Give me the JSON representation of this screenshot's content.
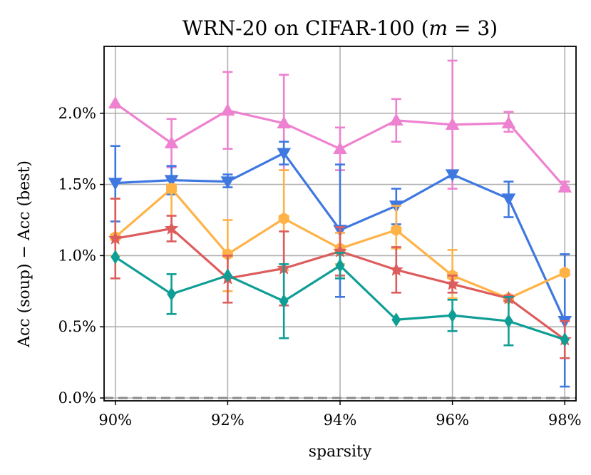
{
  "chart_data": {
    "type": "line",
    "title": "WRN-20 on CIFAR-100 (m = 3)",
    "title_parts": {
      "prefix": "WRN-20 on CIFAR-100 (",
      "var": "m",
      "rest": " = 3)"
    },
    "xlabel": "sparsity",
    "ylabel": "Acc (soup) − Acc (best)",
    "x": [
      90,
      91,
      92,
      93,
      94,
      95,
      96,
      97,
      98
    ],
    "x_ticks": [
      90,
      92,
      94,
      96,
      98
    ],
    "x_tick_labels": [
      "90%",
      "92%",
      "94%",
      "96%",
      "98%"
    ],
    "y_ticks": [
      0.0,
      0.5,
      1.0,
      1.5,
      2.0
    ],
    "y_tick_labels": [
      "0.0%",
      "0.5%",
      "1.0%",
      "1.5%",
      "2.0%"
    ],
    "xlim": [
      89.8,
      98.2
    ],
    "ylim": [
      -0.02,
      2.47
    ],
    "grid": true,
    "zero_line": 0.0,
    "series": [
      {
        "name": "pink",
        "color": "#ee82d0",
        "marker": "triangle-up",
        "values": [
          2.07,
          1.79,
          2.02,
          1.93,
          1.75,
          1.95,
          1.92,
          1.93,
          1.48
        ],
        "err_low": [
          2.07,
          1.62,
          1.75,
          1.6,
          1.6,
          1.8,
          1.47,
          1.87,
          1.48
        ],
        "err_high": [
          2.07,
          1.96,
          2.29,
          2.27,
          1.9,
          2.1,
          2.37,
          2.01,
          1.52
        ]
      },
      {
        "name": "blue",
        "color": "#3f78e0",
        "marker": "triangle-down",
        "values": [
          1.51,
          1.53,
          1.52,
          1.72,
          1.18,
          1.35,
          1.57,
          1.4,
          0.54
        ],
        "err_low": [
          1.24,
          1.43,
          1.48,
          1.64,
          0.71,
          1.22,
          1.55,
          1.27,
          0.08
        ],
        "err_high": [
          1.77,
          1.63,
          1.57,
          1.8,
          1.64,
          1.47,
          1.59,
          1.52,
          1.01
        ]
      },
      {
        "name": "orange",
        "color": "#ffb347",
        "marker": "hexagon",
        "values": [
          1.13,
          1.47,
          1.01,
          1.26,
          1.05,
          1.18,
          0.86,
          0.7,
          0.88
        ],
        "err_low": [
          1.0,
          1.2,
          0.75,
          0.9,
          0.94,
          1.05,
          0.7,
          0.68,
          0.88
        ],
        "err_high": [
          1.4,
          1.5,
          1.25,
          1.6,
          1.16,
          1.35,
          1.04,
          0.72,
          0.88
        ]
      },
      {
        "name": "red",
        "color": "#dd5c5c",
        "marker": "star",
        "values": [
          1.12,
          1.19,
          0.84,
          0.91,
          1.03,
          0.9,
          0.8,
          0.7,
          0.41
        ],
        "err_low": [
          0.84,
          1.1,
          0.67,
          0.65,
          0.86,
          0.74,
          0.74,
          0.68,
          0.28
        ],
        "err_high": [
          1.4,
          1.28,
          1.0,
          1.17,
          1.2,
          1.06,
          0.86,
          0.72,
          0.54
        ]
      },
      {
        "name": "teal",
        "color": "#0f9e96",
        "marker": "diamond",
        "values": [
          0.99,
          0.73,
          0.86,
          0.68,
          0.93,
          0.55,
          0.58,
          0.54,
          0.41
        ],
        "err_low": [
          0.99,
          0.59,
          0.86,
          0.42,
          0.84,
          0.55,
          0.47,
          0.37,
          0.41
        ],
        "err_high": [
          0.99,
          0.87,
          0.86,
          0.94,
          1.02,
          0.55,
          0.69,
          0.71,
          0.41
        ]
      }
    ]
  }
}
